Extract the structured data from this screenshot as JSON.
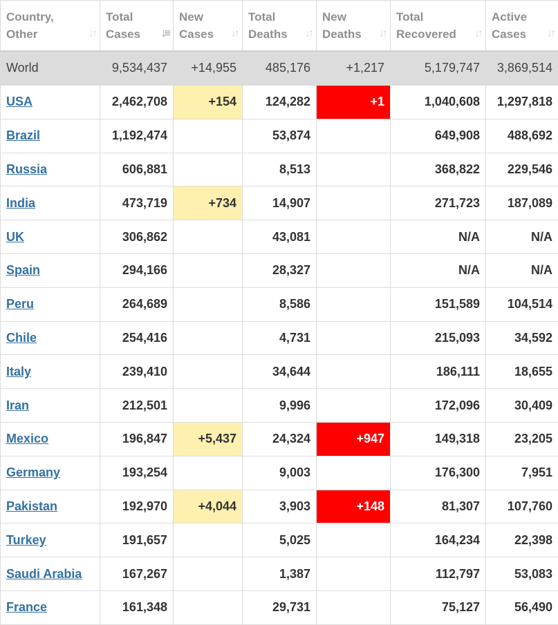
{
  "headers": {
    "country": [
      "Country,",
      "Other"
    ],
    "total_cases": [
      "Total",
      "Cases"
    ],
    "new_cases": [
      "New",
      "Cases"
    ],
    "total_deaths": [
      "Total",
      "Deaths"
    ],
    "new_deaths": [
      "New",
      "Deaths"
    ],
    "total_recovered": [
      "Total",
      "Recovered"
    ],
    "active_cases": [
      "Active",
      "Cases"
    ]
  },
  "sort_icons": {
    "default": "sort-icon",
    "active": "sort-descending-icon"
  },
  "world": {
    "country": "World",
    "total_cases": "9,534,437",
    "new_cases": "+14,955",
    "total_deaths": "485,176",
    "new_deaths": "+1,217",
    "total_recovered": "5,179,747",
    "active_cases": "3,869,514"
  },
  "rows": [
    {
      "country": "USA",
      "total_cases": "2,462,708",
      "new_cases": "+154",
      "total_deaths": "124,282",
      "new_deaths": "+1",
      "total_recovered": "1,040,608",
      "active_cases": "1,297,818"
    },
    {
      "country": "Brazil",
      "total_cases": "1,192,474",
      "new_cases": "",
      "total_deaths": "53,874",
      "new_deaths": "",
      "total_recovered": "649,908",
      "active_cases": "488,692"
    },
    {
      "country": "Russia",
      "total_cases": "606,881",
      "new_cases": "",
      "total_deaths": "8,513",
      "new_deaths": "",
      "total_recovered": "368,822",
      "active_cases": "229,546"
    },
    {
      "country": "India",
      "total_cases": "473,719",
      "new_cases": "+734",
      "total_deaths": "14,907",
      "new_deaths": "",
      "total_recovered": "271,723",
      "active_cases": "187,089"
    },
    {
      "country": "UK",
      "total_cases": "306,862",
      "new_cases": "",
      "total_deaths": "43,081",
      "new_deaths": "",
      "total_recovered": "N/A",
      "active_cases": "N/A"
    },
    {
      "country": "Spain",
      "total_cases": "294,166",
      "new_cases": "",
      "total_deaths": "28,327",
      "new_deaths": "",
      "total_recovered": "N/A",
      "active_cases": "N/A"
    },
    {
      "country": "Peru",
      "total_cases": "264,689",
      "new_cases": "",
      "total_deaths": "8,586",
      "new_deaths": "",
      "total_recovered": "151,589",
      "active_cases": "104,514"
    },
    {
      "country": "Chile",
      "total_cases": "254,416",
      "new_cases": "",
      "total_deaths": "4,731",
      "new_deaths": "",
      "total_recovered": "215,093",
      "active_cases": "34,592"
    },
    {
      "country": "Italy",
      "total_cases": "239,410",
      "new_cases": "",
      "total_deaths": "34,644",
      "new_deaths": "",
      "total_recovered": "186,111",
      "active_cases": "18,655"
    },
    {
      "country": "Iran",
      "total_cases": "212,501",
      "new_cases": "",
      "total_deaths": "9,996",
      "new_deaths": "",
      "total_recovered": "172,096",
      "active_cases": "30,409"
    },
    {
      "country": "Mexico",
      "total_cases": "196,847",
      "new_cases": "+5,437",
      "total_deaths": "24,324",
      "new_deaths": "+947",
      "total_recovered": "149,318",
      "active_cases": "23,205"
    },
    {
      "country": "Germany",
      "total_cases": "193,254",
      "new_cases": "",
      "total_deaths": "9,003",
      "new_deaths": "",
      "total_recovered": "176,300",
      "active_cases": "7,951"
    },
    {
      "country": "Pakistan",
      "total_cases": "192,970",
      "new_cases": "+4,044",
      "total_deaths": "3,903",
      "new_deaths": "+148",
      "total_recovered": "81,307",
      "active_cases": "107,760"
    },
    {
      "country": "Turkey",
      "total_cases": "191,657",
      "new_cases": "",
      "total_deaths": "5,025",
      "new_deaths": "",
      "total_recovered": "164,234",
      "active_cases": "22,398"
    },
    {
      "country": "Saudi Arabia",
      "total_cases": "167,267",
      "new_cases": "",
      "total_deaths": "1,387",
      "new_deaths": "",
      "total_recovered": "112,797",
      "active_cases": "53,083"
    },
    {
      "country": "France",
      "total_cases": "161,348",
      "new_cases": "",
      "total_deaths": "29,731",
      "new_deaths": "",
      "total_recovered": "75,127",
      "active_cases": "56,490"
    }
  ]
}
